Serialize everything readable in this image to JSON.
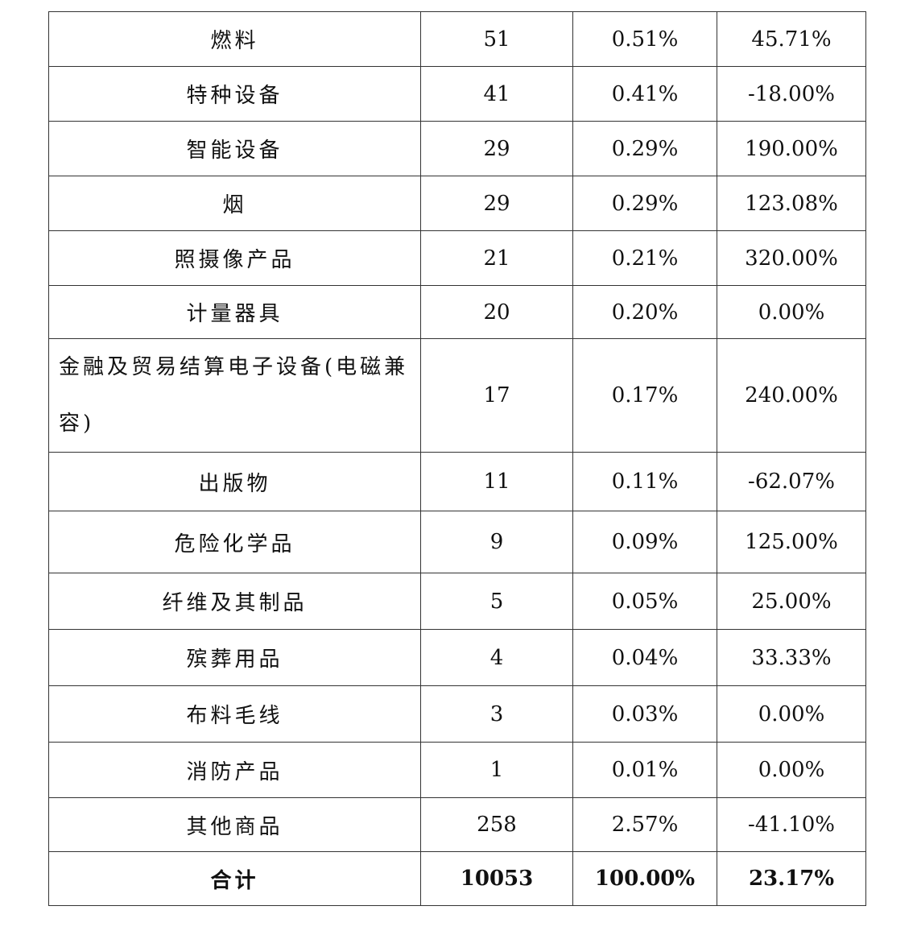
{
  "rows": [
    {
      "name": "燃料",
      "count": "51",
      "share": "0.51%",
      "growth": "45.71%"
    },
    {
      "name": "特种设备",
      "count": "41",
      "share": "0.41%",
      "growth": "-18.00%"
    },
    {
      "name": "智能设备",
      "count": "29",
      "share": "0.29%",
      "growth": "190.00%"
    },
    {
      "name": "烟",
      "count": "29",
      "share": "0.29%",
      "growth": "123.08%"
    },
    {
      "name": "照摄像产品",
      "count": "21",
      "share": "0.21%",
      "growth": "320.00%"
    },
    {
      "name": "计量器具",
      "count": "20",
      "share": "0.20%",
      "growth": "0.00%"
    },
    {
      "name": "金融及贸易结算电子设备(电磁兼容)",
      "count": "17",
      "share": "0.17%",
      "growth": "240.00%"
    },
    {
      "name": "出版物",
      "count": "11",
      "share": "0.11%",
      "growth": "-62.07%"
    },
    {
      "name": "危险化学品",
      "count": "9",
      "share": "0.09%",
      "growth": "125.00%"
    },
    {
      "name": "纤维及其制品",
      "count": "5",
      "share": "0.05%",
      "growth": "25.00%"
    },
    {
      "name": "殡葬用品",
      "count": "4",
      "share": "0.04%",
      "growth": "33.33%"
    },
    {
      "name": "布料毛线",
      "count": "3",
      "share": "0.03%",
      "growth": "0.00%"
    },
    {
      "name": "消防产品",
      "count": "1",
      "share": "0.01%",
      "growth": "0.00%"
    },
    {
      "name": "其他商品",
      "count": "258",
      "share": "2.57%",
      "growth": "-41.10%"
    }
  ],
  "total": {
    "name": "合计",
    "count": "10053",
    "share": "100.00%",
    "growth": "23.17%"
  }
}
